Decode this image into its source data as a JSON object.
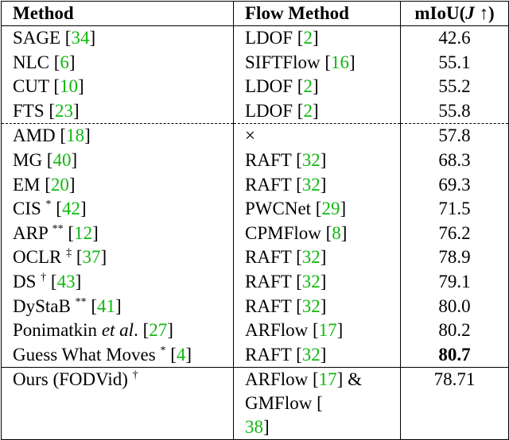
{
  "table": {
    "header": [
      [
        "Method"
      ],
      [
        "Flow Method"
      ],
      [
        "mIoU(",
        {
          "text": "J",
          "style": "italic"
        },
        " ↑)"
      ]
    ],
    "rows": [
      [
        [
          "SAGE [",
          {
            "text": "34",
            "style": "cite"
          },
          "]"
        ],
        [
          "LDOF [",
          {
            "text": "2",
            "style": "cite"
          },
          "]"
        ],
        [
          "42.6"
        ]
      ],
      [
        [
          "NLC [",
          {
            "text": "6",
            "style": "cite"
          },
          "]"
        ],
        [
          "SIFTFlow [",
          {
            "text": "16",
            "style": "cite"
          },
          "]"
        ],
        [
          "55.1"
        ]
      ],
      [
        [
          "CUT [",
          {
            "text": "10",
            "style": "cite"
          },
          "]"
        ],
        [
          "LDOF [",
          {
            "text": "2",
            "style": "cite"
          },
          "]"
        ],
        [
          "55.2"
        ]
      ],
      [
        [
          "FTS [",
          {
            "text": "23",
            "style": "cite"
          },
          "]"
        ],
        [
          "LDOF [",
          {
            "text": "2",
            "style": "cite"
          },
          "]"
        ],
        [
          "55.8"
        ]
      ],
      [
        [
          "AMD [",
          {
            "text": "18",
            "style": "cite"
          },
          "]"
        ],
        [
          "×"
        ],
        [
          "57.8"
        ]
      ],
      [
        [
          "MG [",
          {
            "text": "40",
            "style": "cite"
          },
          "]"
        ],
        [
          "RAFT [",
          {
            "text": "32",
            "style": "cite"
          },
          "]"
        ],
        [
          "68.3"
        ]
      ],
      [
        [
          "EM [",
          {
            "text": "20",
            "style": "cite"
          },
          "]"
        ],
        [
          "RAFT [",
          {
            "text": "32",
            "style": "cite"
          },
          "]"
        ],
        [
          "69.3"
        ]
      ],
      [
        [
          "CIS ",
          {
            "text": "*",
            "style": "sup"
          },
          " [",
          {
            "text": "42",
            "style": "cite"
          },
          "]"
        ],
        [
          "PWCNet [",
          {
            "text": "29",
            "style": "cite"
          },
          "]"
        ],
        [
          "71.5"
        ]
      ],
      [
        [
          "ARP ",
          {
            "text": "**",
            "style": "sup"
          },
          " [",
          {
            "text": "12",
            "style": "cite"
          },
          "]"
        ],
        [
          "CPMFlow [",
          {
            "text": "8",
            "style": "cite"
          },
          "]"
        ],
        [
          "76.2"
        ]
      ],
      [
        [
          "OCLR ",
          {
            "text": "‡",
            "style": "sup"
          },
          " [",
          {
            "text": "37",
            "style": "cite"
          },
          "]"
        ],
        [
          "RAFT [",
          {
            "text": "32",
            "style": "cite"
          },
          "]"
        ],
        [
          "78.9"
        ]
      ],
      [
        [
          "DS ",
          {
            "text": "†",
            "style": "sup"
          },
          " [",
          {
            "text": "43",
            "style": "cite"
          },
          "]"
        ],
        [
          "RAFT [",
          {
            "text": "32",
            "style": "cite"
          },
          "]"
        ],
        [
          "79.1"
        ]
      ],
      [
        [
          "DyStaB ",
          {
            "text": "**",
            "style": "sup"
          },
          " [",
          {
            "text": "41",
            "style": "cite"
          },
          "]"
        ],
        [
          "RAFT [",
          {
            "text": "32",
            "style": "cite"
          },
          "]"
        ],
        [
          "80.0"
        ]
      ],
      [
        [
          "Ponimatkin ",
          {
            "text": "et al",
            "style": "italic"
          },
          ". [",
          {
            "text": "27",
            "style": "cite"
          },
          "]"
        ],
        [
          "ARFlow [",
          {
            "text": "17",
            "style": "cite"
          },
          "]"
        ],
        [
          "80.2"
        ]
      ],
      [
        [
          "Guess What Moves ",
          {
            "text": "*",
            "style": "sup"
          },
          " [",
          {
            "text": "4",
            "style": "cite"
          },
          "]"
        ],
        [
          "RAFT [",
          {
            "text": "32",
            "style": "cite"
          },
          "]"
        ],
        [
          {
            "text": "80.7",
            "style": "bold"
          }
        ]
      ],
      [
        [
          "Ours (FODVid) ",
          {
            "text": "†",
            "style": "sup"
          }
        ],
        [
          "ARFlow [",
          {
            "text": "17",
            "style": "cite"
          },
          "] &",
          {
            "text": "GMFlow [",
            "style": "newline"
          },
          {
            "text": "38",
            "style": "cite"
          },
          "]"
        ],
        [
          "78.71"
        ]
      ]
    ]
  }
}
